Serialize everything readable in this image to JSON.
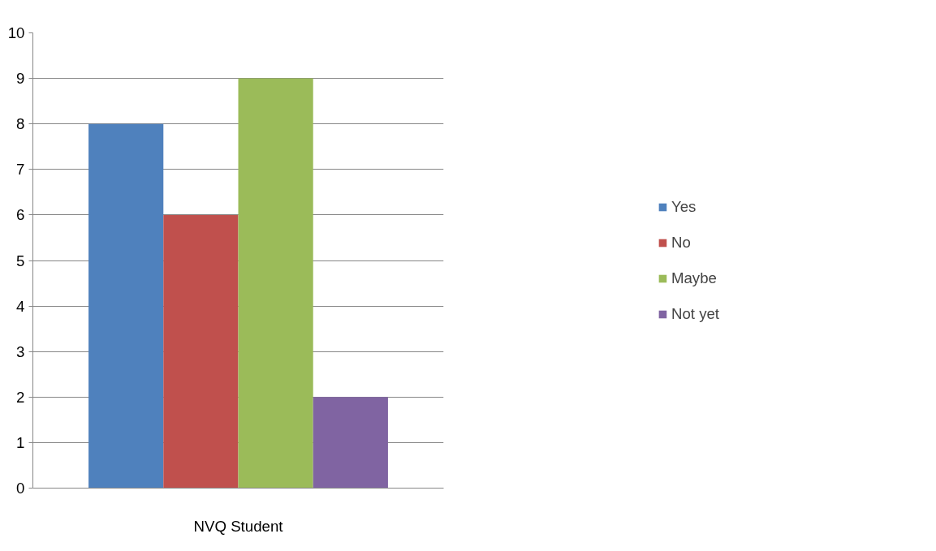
{
  "chart_data": {
    "type": "bar",
    "categories": [
      "NVQ Student"
    ],
    "series": [
      {
        "name": "Yes",
        "color": "#4f81bd",
        "values": [
          8
        ]
      },
      {
        "name": "No",
        "color": "#c0504d",
        "values": [
          6
        ]
      },
      {
        "name": "Maybe",
        "color": "#9bbb59",
        "values": [
          9
        ]
      },
      {
        "name": "Not yet",
        "color": "#8064a2",
        "values": [
          2
        ]
      }
    ],
    "ylim": [
      0,
      10
    ],
    "yticks": [
      0,
      1,
      2,
      3,
      4,
      5,
      6,
      7,
      8,
      9,
      10
    ],
    "grid": "y",
    "legend": "right"
  }
}
